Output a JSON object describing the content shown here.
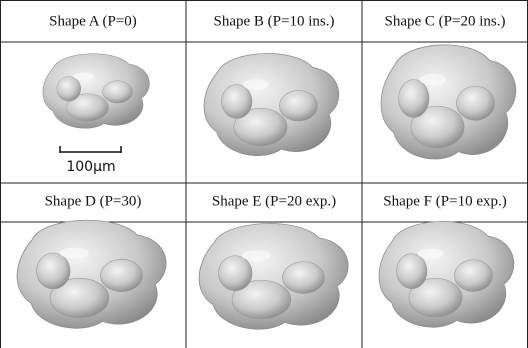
{
  "cells": [
    {
      "label": "Shape A (P=0)"
    },
    {
      "label": "Shape B (P=10 ins.)"
    },
    {
      "label": "Shape C (P=20 ins.)"
    },
    {
      "label": "Shape D (P=30)"
    },
    {
      "label": "Shape E (P=20 exp.)"
    },
    {
      "label": "Shape F (P=10 exp.)"
    }
  ],
  "scale_bar": "100μm"
}
